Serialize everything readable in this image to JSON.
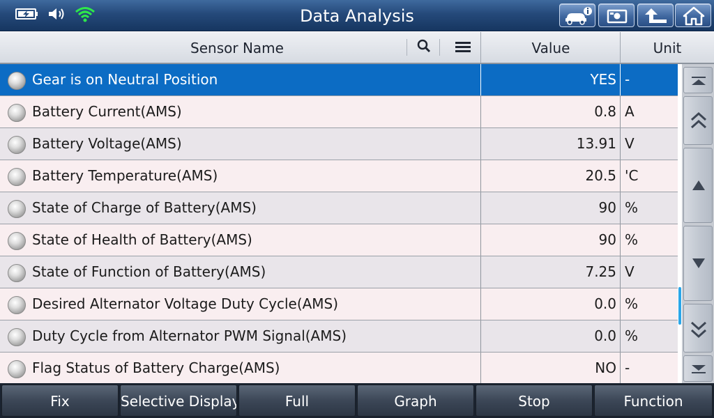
{
  "window": {
    "title": "Data Analysis"
  },
  "status_icons": [
    "battery-charging-icon",
    "speaker-icon",
    "wifi-icon"
  ],
  "toolbar_icons": [
    "vehicle-info-icon",
    "screenshot-icon",
    "back-icon",
    "home-icon"
  ],
  "colors": {
    "accent": "#0c6cc4",
    "title_bar": "#25497a",
    "wifi": "#2ee84a",
    "scroll_thumb": "#2aa6e8"
  },
  "columns": {
    "name": "Sensor Name",
    "value": "Value",
    "unit": "Unit"
  },
  "header_icons": [
    "search-icon",
    "menu-icon"
  ],
  "rows": [
    {
      "name": "Gear is on Neutral Position",
      "value": "YES",
      "unit": "-",
      "selected": true
    },
    {
      "name": "Battery Current(AMS)",
      "value": "0.8",
      "unit": "A"
    },
    {
      "name": "Battery Voltage(AMS)",
      "value": "13.91",
      "unit": "V"
    },
    {
      "name": "Battery Temperature(AMS)",
      "value": "20.5",
      "unit": "'C"
    },
    {
      "name": "State of Charge of Battery(AMS)",
      "value": "90",
      "unit": "%"
    },
    {
      "name": "State of Health of Battery(AMS)",
      "value": "90",
      "unit": "%"
    },
    {
      "name": "State of Function of Battery(AMS)",
      "value": "7.25",
      "unit": "V"
    },
    {
      "name": "Desired Alternator Voltage Duty Cycle(AMS)",
      "value": "0.0",
      "unit": "%"
    },
    {
      "name": "Duty Cycle from Alternator PWM Signal(AMS)",
      "value": "0.0",
      "unit": "%"
    },
    {
      "name": "Flag Status of Battery Charge(AMS)",
      "value": "NO",
      "unit": "-"
    }
  ],
  "scroll_icons": [
    "scroll-top-icon",
    "page-up-icon",
    "line-up-icon",
    "line-down-icon",
    "page-down-icon",
    "scroll-bottom-icon"
  ],
  "bottom_buttons": {
    "fix": "Fix",
    "selective_display": "Selective Display",
    "full": "Full",
    "graph": "Graph",
    "stop": "Stop",
    "function": "Function"
  }
}
